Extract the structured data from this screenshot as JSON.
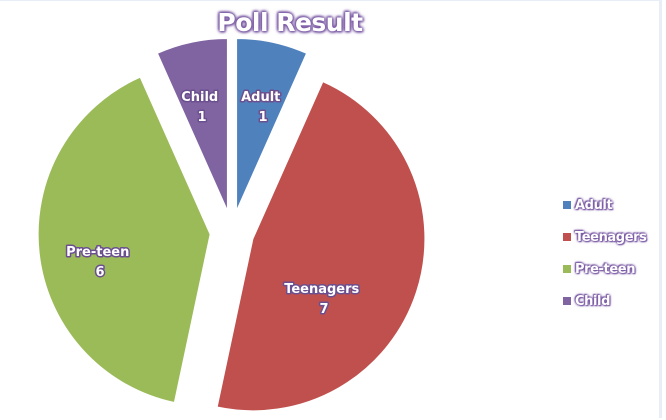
{
  "chart_data": {
    "type": "pie",
    "title": "Poll Result",
    "categories": [
      "Adult",
      "Teenagers",
      "Pre-teen",
      "Child"
    ],
    "values": [
      1,
      7,
      6,
      1
    ],
    "colors": [
      "#4f81bd",
      "#c0504d",
      "#9bbb59",
      "#8064a2"
    ],
    "exploded": true,
    "data_labels": [
      "Adult\n1",
      "Teenagers\n7",
      "Pre-teen\n6",
      "Child\n1"
    ],
    "legend_position": "right",
    "start_angle_deg": 0,
    "direction": "clockwise"
  },
  "title": "Poll Result",
  "legend": {
    "items": [
      {
        "label": "Adult",
        "color": "#4f81bd"
      },
      {
        "label": "Teenagers",
        "color": "#c0504d"
      },
      {
        "label": "Pre-teen",
        "color": "#9bbb59"
      },
      {
        "label": "Child",
        "color": "#8064a2"
      }
    ]
  },
  "labels": {
    "adult": {
      "name": "Adult",
      "value": "1"
    },
    "teenagers": {
      "name": "Teenagers",
      "value": "7"
    },
    "preteen": {
      "name": "Pre-teen",
      "value": "6"
    },
    "child": {
      "name": "Child",
      "value": "1"
    }
  }
}
